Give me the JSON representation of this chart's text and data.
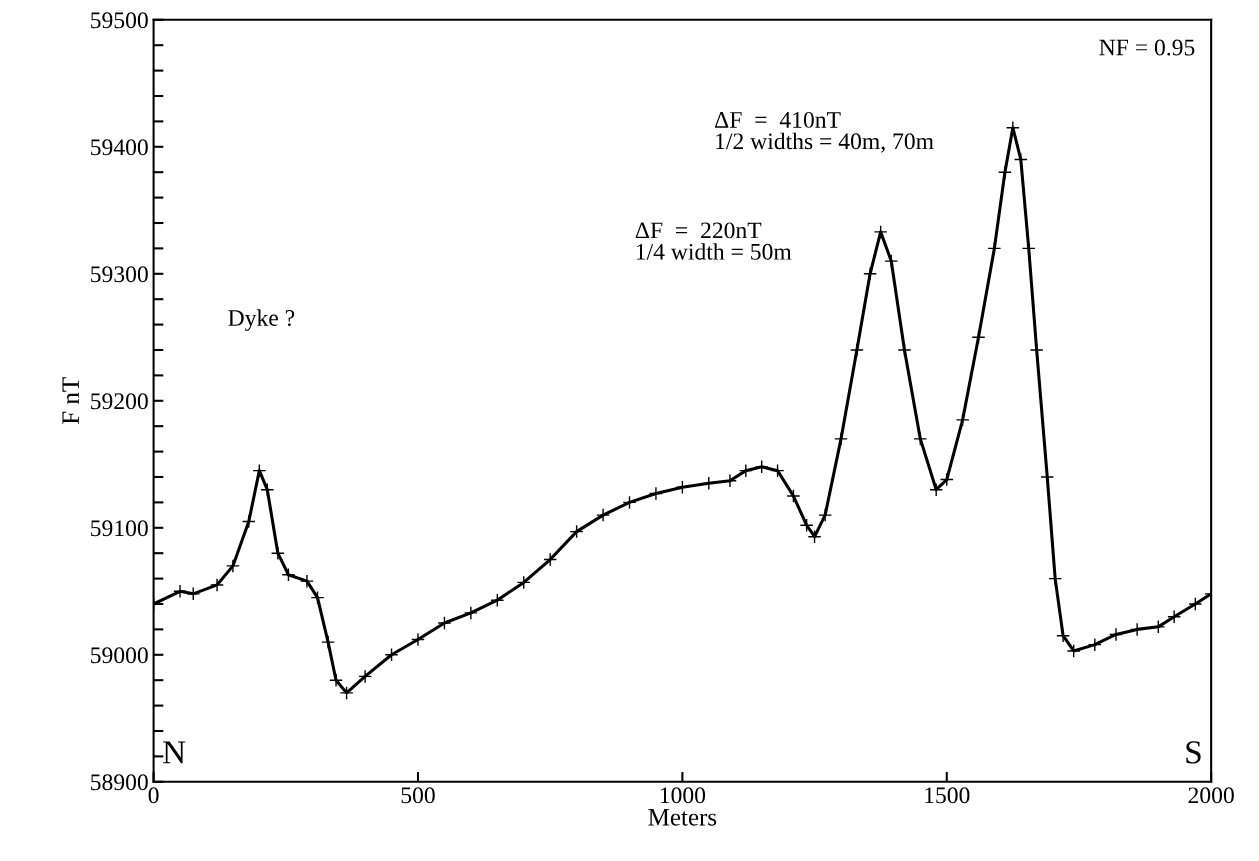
{
  "chart_data": {
    "type": "line",
    "xlabel": "Meters",
    "ylabel": "F nT",
    "x": [
      0,
      50,
      75,
      120,
      150,
      180,
      200,
      215,
      235,
      255,
      290,
      310,
      330,
      345,
      365,
      400,
      450,
      500,
      550,
      600,
      650,
      700,
      750,
      800,
      850,
      900,
      950,
      1000,
      1050,
      1090,
      1120,
      1150,
      1180,
      1210,
      1235,
      1250,
      1270,
      1300,
      1330,
      1355,
      1375,
      1395,
      1420,
      1450,
      1480,
      1500,
      1530,
      1560,
      1590,
      1610,
      1625,
      1640,
      1655,
      1670,
      1690,
      1705,
      1720,
      1740,
      1780,
      1820,
      1860,
      1900,
      1930,
      1970,
      2000
    ],
    "series": [
      {
        "color": "#000000",
        "values": [
          59040,
          59050,
          59048,
          59055,
          59070,
          59105,
          59145,
          59130,
          59080,
          59063,
          59058,
          59045,
          59010,
          58980,
          58970,
          58983,
          59000,
          59012,
          59025,
          59033,
          59043,
          59057,
          59075,
          59097,
          59110,
          59120,
          59127,
          59132,
          59135,
          59137,
          59145,
          59148,
          59145,
          59125,
          59102,
          59093,
          59110,
          59170,
          59240,
          59300,
          59333,
          59310,
          59240,
          59170,
          59130,
          59138,
          59185,
          59250,
          59320,
          59380,
          59415,
          59390,
          59320,
          59240,
          59140,
          59060,
          59015,
          59003,
          59008,
          59016,
          59020,
          59022,
          59030,
          59040,
          59048
        ]
      }
    ],
    "xlim": [
      0,
      2000
    ],
    "xticks": [
      0,
      500,
      1000,
      1500,
      2000
    ],
    "ylim": [
      58900,
      59500
    ],
    "yticks": [
      58900,
      {
        "value": 58920,
        "label": null
      },
      {
        "value": 58940,
        "label": null
      },
      {
        "value": 58960,
        "label": null
      },
      {
        "value": 58980,
        "label": null
      },
      59000,
      {
        "value": 59020,
        "label": null
      },
      {
        "value": 59040,
        "label": null
      },
      {
        "value": 59060,
        "label": null
      },
      {
        "value": 59080,
        "label": null
      },
      59100,
      {
        "value": 59120,
        "label": null
      },
      {
        "value": 59140,
        "label": null
      },
      {
        "value": 59160,
        "label": null
      },
      {
        "value": 59180,
        "label": null
      },
      59200,
      {
        "value": 59220,
        "label": null
      },
      {
        "value": 59240,
        "label": null
      },
      {
        "value": 59260,
        "label": null
      },
      {
        "value": 59280,
        "label": null
      },
      59300,
      {
        "value": 59320,
        "label": null
      },
      {
        "value": 59340,
        "label": null
      },
      {
        "value": 59360,
        "label": null
      },
      {
        "value": 59380,
        "label": null
      },
      59400,
      {
        "value": 59420,
        "label": null
      },
      {
        "value": 59440,
        "label": null
      },
      {
        "value": 59460,
        "label": null
      },
      {
        "value": 59480,
        "label": null
      },
      59500
    ],
    "annotations": [
      "NF = 0.95",
      "ΔF  =  410nT\n1/2 widths = 40m, 70m",
      "ΔF  =  220nT\n1/4 width = 50m",
      "Dyke ?",
      "N",
      "S"
    ],
    "marker": "cross",
    "line_style": "solid",
    "grid": false,
    "legend": false
  }
}
